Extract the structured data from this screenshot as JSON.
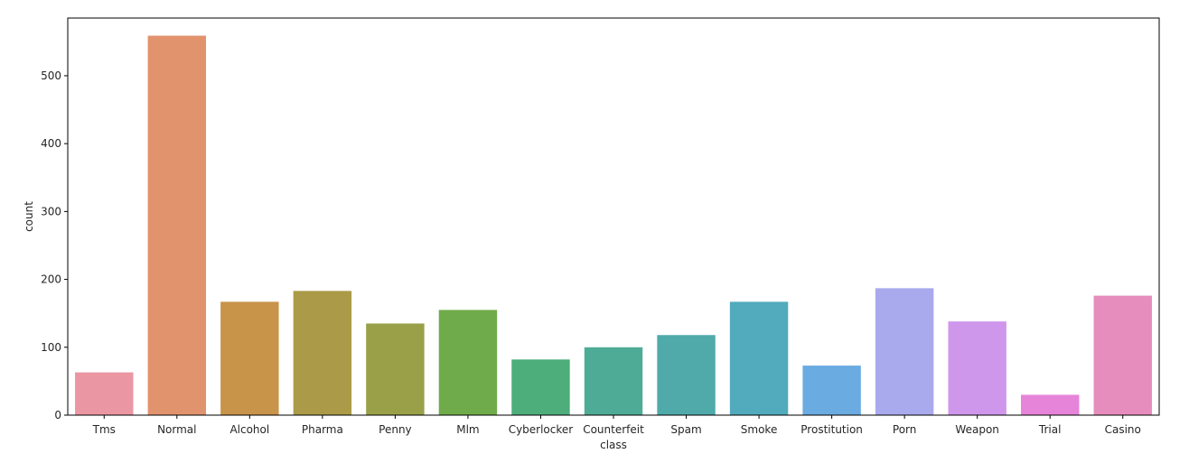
{
  "chart_data": {
    "type": "bar",
    "title": "",
    "xlabel": "class",
    "ylabel": "count",
    "ylim": [
      0,
      585
    ],
    "yticks": [
      0,
      100,
      200,
      300,
      400,
      500
    ],
    "grid": false,
    "legend": "none",
    "categories": [
      "Tms",
      "Normal",
      "Alcohol",
      "Pharma",
      "Penny",
      "Mlm",
      "Cyberlocker",
      "Counterfeit",
      "Spam",
      "Smoke",
      "Prostitution",
      "Porn",
      "Weapon",
      "Trial",
      "Casino"
    ],
    "values": [
      63,
      559,
      167,
      183,
      135,
      155,
      82,
      100,
      118,
      167,
      73,
      187,
      138,
      30,
      176
    ],
    "colors": [
      "#ea96a3",
      "#e1936e",
      "#c8944a",
      "#ab9b48",
      "#99a048",
      "#6fab4a",
      "#4dae7b",
      "#4eac96",
      "#50aaaa",
      "#51abbc",
      "#6aabe1",
      "#a9a9ed",
      "#cf97eb",
      "#e684da",
      "#e68dbd"
    ]
  }
}
